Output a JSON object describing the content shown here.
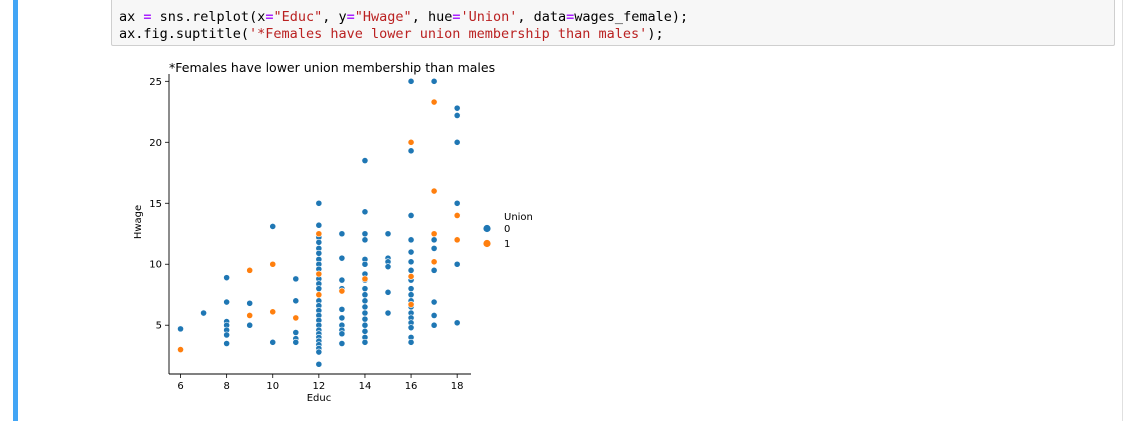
{
  "code": {
    "line1": [
      {
        "t": "ax ",
        "c": "plain"
      },
      {
        "t": "=",
        "c": "op"
      },
      {
        "t": " sns.relplot(x",
        "c": "plain"
      },
      {
        "t": "=",
        "c": "op"
      },
      {
        "t": "\"Educ\"",
        "c": "str"
      },
      {
        "t": ", y",
        "c": "plain"
      },
      {
        "t": "=",
        "c": "op"
      },
      {
        "t": "\"Hwage\"",
        "c": "str"
      },
      {
        "t": ", hue",
        "c": "plain"
      },
      {
        "t": "=",
        "c": "op"
      },
      {
        "t": "'Union'",
        "c": "str"
      },
      {
        "t": ", data",
        "c": "plain"
      },
      {
        "t": "=",
        "c": "op"
      },
      {
        "t": "wages_female);",
        "c": "plain"
      }
    ],
    "line2": [
      {
        "t": "ax.fig.suptitle(",
        "c": "plain"
      },
      {
        "t": "'*Females have lower union membership than males'",
        "c": "str"
      },
      {
        "t": ");",
        "c": "plain"
      }
    ]
  },
  "colors": {
    "series0": "#1f77b4",
    "series1": "#ff7f0e"
  },
  "chart_data": {
    "type": "scatter",
    "title": "*Females have lower union membership than males",
    "xlabel": "Educ",
    "ylabel": "Hwage",
    "xlim": [
      5.5,
      18.6
    ],
    "ylim": [
      1.0,
      25.6
    ],
    "xticks": [
      6,
      8,
      10,
      12,
      14,
      16,
      18
    ],
    "yticks": [
      5,
      10,
      15,
      20,
      25
    ],
    "legend": {
      "title": "Union",
      "position": "right",
      "entries": [
        "0",
        "1"
      ]
    },
    "grid": false,
    "series": [
      {
        "name": "0",
        "points": [
          [
            6,
            4.7
          ],
          [
            7,
            6.0
          ],
          [
            8,
            8.9
          ],
          [
            8,
            6.9
          ],
          [
            8,
            5.3
          ],
          [
            8,
            5.0
          ],
          [
            8,
            4.6
          ],
          [
            8,
            4.2
          ],
          [
            8,
            3.5
          ],
          [
            9,
            6.8
          ],
          [
            9,
            5.0
          ],
          [
            10,
            13.1
          ],
          [
            10,
            3.6
          ],
          [
            11,
            8.8
          ],
          [
            11,
            7.0
          ],
          [
            11,
            4.4
          ],
          [
            11,
            3.9
          ],
          [
            11,
            3.6
          ],
          [
            12,
            15.0
          ],
          [
            12,
            13.2
          ],
          [
            12,
            12.2
          ],
          [
            12,
            11.8
          ],
          [
            12,
            11.3
          ],
          [
            12,
            10.9
          ],
          [
            12,
            10.4
          ],
          [
            12,
            10.0
          ],
          [
            12,
            9.6
          ],
          [
            12,
            9.2
          ],
          [
            12,
            8.8
          ],
          [
            12,
            8.4
          ],
          [
            12,
            8.0
          ],
          [
            12,
            7.5
          ],
          [
            12,
            7.0
          ],
          [
            12,
            6.6
          ],
          [
            12,
            6.2
          ],
          [
            12,
            5.8
          ],
          [
            12,
            5.4
          ],
          [
            12,
            5.0
          ],
          [
            12,
            4.6
          ],
          [
            12,
            4.3
          ],
          [
            12,
            4.0
          ],
          [
            12,
            3.7
          ],
          [
            12,
            3.4
          ],
          [
            12,
            3.1
          ],
          [
            12,
            2.8
          ],
          [
            12,
            1.8
          ],
          [
            13,
            12.5
          ],
          [
            13,
            10.5
          ],
          [
            13,
            8.7
          ],
          [
            13,
            8.0
          ],
          [
            13,
            6.3
          ],
          [
            13,
            5.6
          ],
          [
            13,
            5.0
          ],
          [
            13,
            4.6
          ],
          [
            13,
            4.3
          ],
          [
            13,
            3.5
          ],
          [
            14,
            18.5
          ],
          [
            14,
            14.3
          ],
          [
            14,
            12.5
          ],
          [
            14,
            12.0
          ],
          [
            14,
            10.4
          ],
          [
            14,
            10.0
          ],
          [
            14,
            9.2
          ],
          [
            14,
            8.7
          ],
          [
            14,
            8.0
          ],
          [
            14,
            7.5
          ],
          [
            14,
            7.0
          ],
          [
            14,
            6.5
          ],
          [
            14,
            6.0
          ],
          [
            14,
            5.5
          ],
          [
            14,
            5.0
          ],
          [
            14,
            4.5
          ],
          [
            14,
            4.0
          ],
          [
            14,
            3.6
          ],
          [
            15,
            12.5
          ],
          [
            15,
            10.5
          ],
          [
            15,
            10.2
          ],
          [
            15,
            9.8
          ],
          [
            15,
            7.7
          ],
          [
            15,
            6.0
          ],
          [
            16,
            25.0
          ],
          [
            16,
            19.3
          ],
          [
            16,
            14.0
          ],
          [
            16,
            12.0
          ],
          [
            16,
            11.0
          ],
          [
            16,
            10.2
          ],
          [
            16,
            9.5
          ],
          [
            16,
            8.7
          ],
          [
            16,
            8.0
          ],
          [
            16,
            7.5
          ],
          [
            16,
            7.0
          ],
          [
            16,
            6.5
          ],
          [
            16,
            6.0
          ],
          [
            16,
            5.6
          ],
          [
            16,
            5.2
          ],
          [
            16,
            4.8
          ],
          [
            16,
            4.0
          ],
          [
            16,
            3.6
          ],
          [
            17,
            25.0
          ],
          [
            17,
            12.0
          ],
          [
            17,
            11.3
          ],
          [
            17,
            9.5
          ],
          [
            17,
            6.9
          ],
          [
            17,
            5.8
          ],
          [
            17,
            5.0
          ],
          [
            18,
            22.8
          ],
          [
            18,
            22.2
          ],
          [
            18,
            20.0
          ],
          [
            18,
            15.0
          ],
          [
            18,
            10.0
          ],
          [
            18,
            5.2
          ]
        ]
      },
      {
        "name": "1",
        "points": [
          [
            6,
            3.0
          ],
          [
            9,
            9.5
          ],
          [
            9,
            5.8
          ],
          [
            10,
            10.0
          ],
          [
            10,
            6.1
          ],
          [
            11,
            5.6
          ],
          [
            12,
            12.5
          ],
          [
            12,
            9.2
          ],
          [
            12,
            7.5
          ],
          [
            13,
            7.8
          ],
          [
            14,
            8.8
          ],
          [
            16,
            20.0
          ],
          [
            16,
            9.0
          ],
          [
            16,
            6.7
          ],
          [
            17,
            23.3
          ],
          [
            17,
            16.0
          ],
          [
            17,
            12.5
          ],
          [
            17,
            10.2
          ],
          [
            18,
            14.0
          ],
          [
            18,
            12.0
          ]
        ]
      }
    ]
  }
}
